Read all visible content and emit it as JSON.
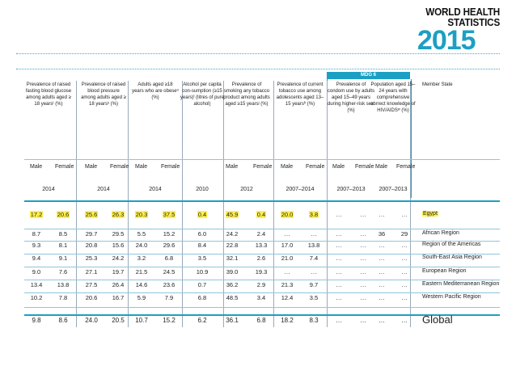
{
  "logo": {
    "line1": "WORLD HEALTH",
    "line2": "STATISTICS",
    "year": "2015"
  },
  "mdg_label": "MDG 6",
  "headers": [
    "Prevalence of raised fasting blood glucose among adults aged ≥ 18 yearsᵗ (%)",
    "Prevalence of raised blood pressure among adults aged ≥ 18 yearsˢ (%)",
    "Adults aged ≥18 years who are obeseᵘ (%)",
    "Alcohol per capita con-sumption (≥15 years)ˡ (litres of pure alcohol)",
    "Prevalence of smoking any tobacco product among adults aged ≥15 yearsʲ (%)",
    "Prevalence of current tobacco use among adolescents aged 13–15 yearsʰ (%)",
    "Prevalence of condom use by adults aged 15–49 years during higher-risk sexⁱ (%)",
    "Population aged 15–24 years with comprehensive correct knowledge of HIV/AIDSʷ (%)",
    "Member State"
  ],
  "subheaders": {
    "male": "Male",
    "female": "Female"
  },
  "years": [
    "2014",
    "2014",
    "2014",
    "2010",
    "2012",
    "2007–2014",
    "2007–2013",
    "2007–2013"
  ],
  "rows": [
    {
      "name": "Egypt",
      "values": [
        "17.2",
        "20.6",
        "25.6",
        "26.3",
        "20.3",
        "37.5",
        "0.4",
        "45.9",
        "0.4",
        "20.0",
        "3.8",
        "…",
        "…",
        "…",
        "…"
      ]
    },
    {
      "name": "African Region",
      "values": [
        "8.7",
        "8.5",
        "29.7",
        "29.5",
        "5.5",
        "15.2",
        "6.0",
        "24.2",
        "2.4",
        "…",
        "…",
        "…",
        "…",
        "36",
        "29"
      ]
    },
    {
      "name": "Region of the Americas",
      "values": [
        "9.3",
        "8.1",
        "20.8",
        "15.6",
        "24.0",
        "29.6",
        "8.4",
        "22.8",
        "13.3",
        "17.0",
        "13.8",
        "…",
        "…",
        "…",
        "…"
      ]
    },
    {
      "name": "South-East Asia Region",
      "values": [
        "9.4",
        "9.1",
        "25.3",
        "24.2",
        "3.2",
        "6.8",
        "3.5",
        "32.1",
        "2.6",
        "21.0",
        "7.4",
        "…",
        "…",
        "…",
        "…"
      ]
    },
    {
      "name": "European Region",
      "values": [
        "9.0",
        "7.6",
        "27.1",
        "19.7",
        "21.5",
        "24.5",
        "10.9",
        "39.0",
        "19.3",
        "…",
        "…",
        "…",
        "…",
        "…",
        "…"
      ]
    },
    {
      "name": "Eastern Mediterranean Region",
      "values": [
        "13.4",
        "13.8",
        "27.5",
        "26.4",
        "14.6",
        "23.6",
        "0.7",
        "36.2",
        "2.9",
        "21.3",
        "9.7",
        "…",
        "…",
        "…",
        "…"
      ]
    },
    {
      "name": "Western Pacific Region",
      "values": [
        "10.2",
        "7.8",
        "20.6",
        "16.7",
        "5.9",
        "7.9",
        "6.8",
        "48.5",
        "3.4",
        "12.4",
        "3.5",
        "…",
        "…",
        "…",
        "…"
      ]
    },
    {
      "name": "Global",
      "values": [
        "9.8",
        "8.6",
        "24.0",
        "20.5",
        "10.7",
        "15.2",
        "6.2",
        "36.1",
        "6.8",
        "18.2",
        "8.3",
        "…",
        "…",
        "…",
        "…"
      ]
    }
  ]
}
